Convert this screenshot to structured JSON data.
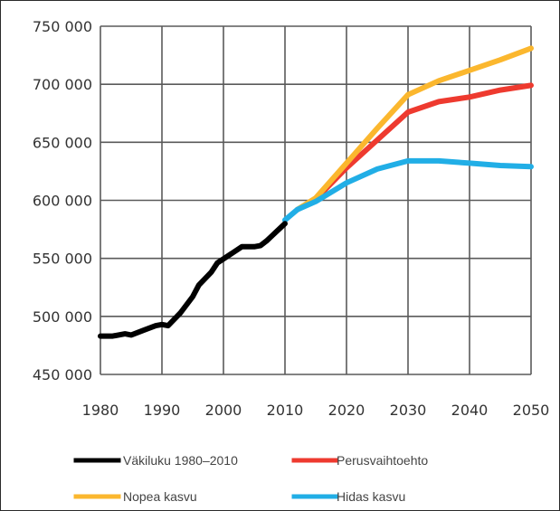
{
  "chart_data": {
    "type": "line",
    "ylim": [
      450000,
      750000
    ],
    "xlim": [
      1980,
      2050
    ],
    "grid": true,
    "legend_position": "bottom",
    "y_ticks": [
      {
        "value": 750000,
        "label": "750 000"
      },
      {
        "value": 700000,
        "label": "700 000"
      },
      {
        "value": 650000,
        "label": "650 000"
      },
      {
        "value": 600000,
        "label": "600 000"
      },
      {
        "value": 550000,
        "label": "550 000"
      },
      {
        "value": 500000,
        "label": "500 000"
      },
      {
        "value": 450000,
        "label": "450 000"
      }
    ],
    "x_ticks": [
      {
        "value": 1980,
        "label": "1980"
      },
      {
        "value": 1990,
        "label": "1990"
      },
      {
        "value": 2000,
        "label": "2000"
      },
      {
        "value": 2010,
        "label": "2010"
      },
      {
        "value": 2020,
        "label": "2020"
      },
      {
        "value": 2030,
        "label": "2030"
      },
      {
        "value": 2040,
        "label": "2040"
      },
      {
        "value": 2050,
        "label": "2050"
      }
    ],
    "series": [
      {
        "name": "Väkiluku 1980–2010",
        "color": "#000000",
        "points": [
          [
            1980,
            483000
          ],
          [
            1982,
            483000
          ],
          [
            1984,
            485000
          ],
          [
            1985,
            484000
          ],
          [
            1987,
            488000
          ],
          [
            1989,
            492000
          ],
          [
            1990,
            493000
          ],
          [
            1991,
            492000
          ],
          [
            1993,
            503000
          ],
          [
            1995,
            517000
          ],
          [
            1996,
            527000
          ],
          [
            1998,
            538000
          ],
          [
            1999,
            546000
          ],
          [
            2001,
            553000
          ],
          [
            2003,
            560000
          ],
          [
            2005,
            560000
          ],
          [
            2006,
            561000
          ],
          [
            2007,
            565000
          ],
          [
            2008,
            570000
          ],
          [
            2010,
            580000
          ]
        ]
      },
      {
        "name": "Perusvaihtoehto",
        "color": "#ee3a2f",
        "points": [
          [
            2012,
            592000
          ],
          [
            2015,
            601000
          ],
          [
            2020,
            628000
          ],
          [
            2025,
            652000
          ],
          [
            2030,
            676000
          ],
          [
            2035,
            685000
          ],
          [
            2040,
            689000
          ],
          [
            2045,
            695000
          ],
          [
            2050,
            699000
          ]
        ]
      },
      {
        "name": "Nopea kasvu",
        "color": "#fbb72e",
        "points": [
          [
            2012,
            592000
          ],
          [
            2015,
            602000
          ],
          [
            2020,
            632000
          ],
          [
            2025,
            662000
          ],
          [
            2030,
            691000
          ],
          [
            2035,
            703000
          ],
          [
            2040,
            712000
          ],
          [
            2045,
            721000
          ],
          [
            2050,
            731000
          ]
        ]
      },
      {
        "name": "Hidas kasvu",
        "color": "#21aee6",
        "points": [
          [
            2010,
            583000
          ],
          [
            2012,
            592000
          ],
          [
            2015,
            599000
          ],
          [
            2020,
            615000
          ],
          [
            2025,
            627000
          ],
          [
            2030,
            634000
          ],
          [
            2035,
            634000
          ],
          [
            2040,
            632000
          ],
          [
            2045,
            630000
          ],
          [
            2050,
            629000
          ]
        ]
      }
    ]
  }
}
